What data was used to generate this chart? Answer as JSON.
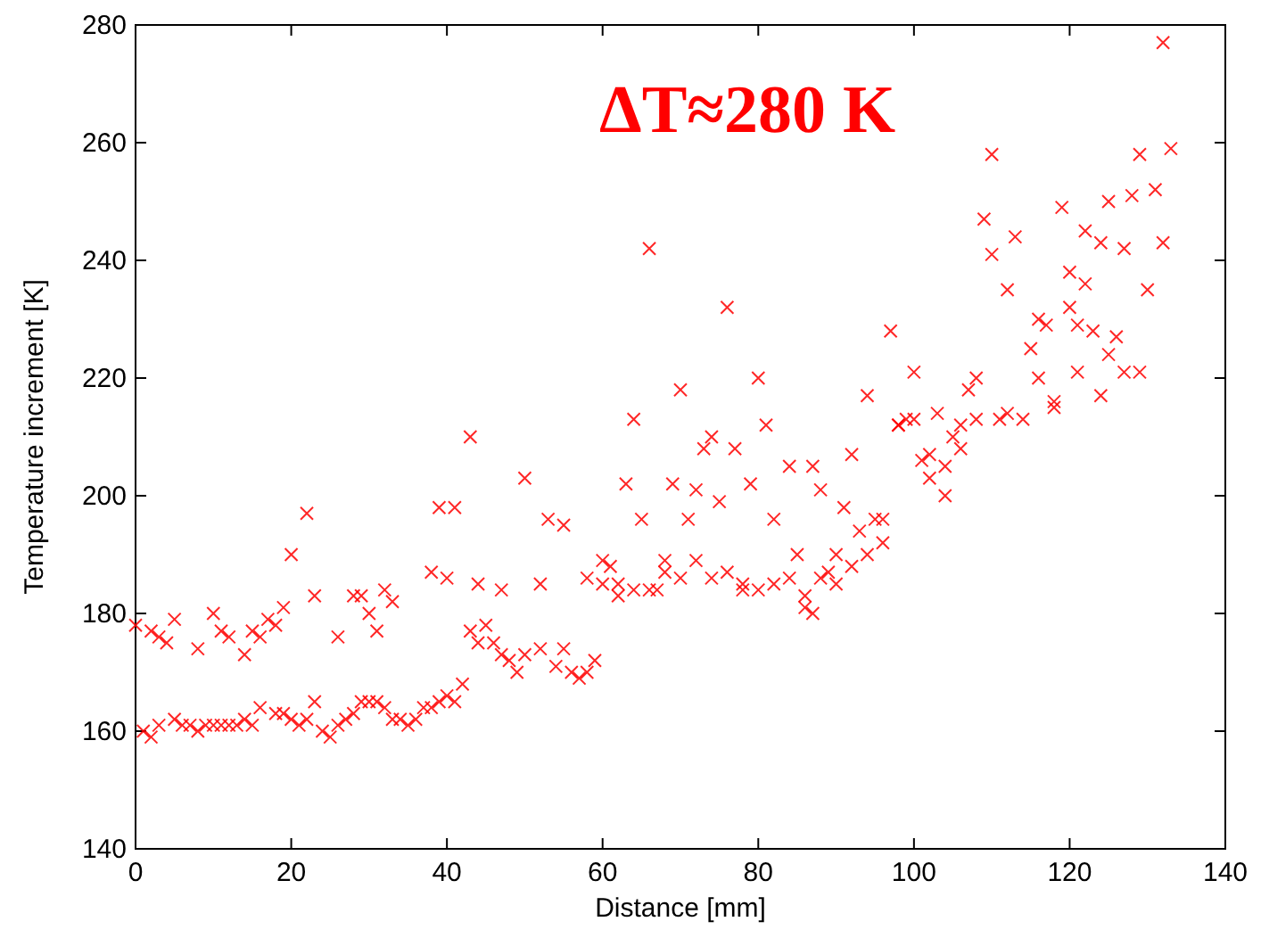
{
  "chart_data": {
    "type": "scatter",
    "xlabel": "Distance [mm]",
    "ylabel": "Temperature increment [K]",
    "annotations": [
      "ΔT≈280 K"
    ],
    "marker": "cross",
    "grid": false,
    "xlim": [
      0,
      140
    ],
    "xticks": [
      0,
      20,
      40,
      60,
      80,
      100,
      120,
      140
    ],
    "ylim": [
      140,
      280
    ],
    "yticks": [
      140,
      160,
      180,
      200,
      220,
      240,
      260,
      280
    ],
    "series": [
      {
        "color": "#ff0000",
        "x": [
          1,
          2,
          3,
          5,
          6,
          7,
          8,
          9,
          10,
          11,
          12,
          13,
          14,
          15,
          16,
          18,
          19,
          20,
          21,
          22,
          23,
          24,
          25,
          26,
          27,
          28,
          29,
          30,
          31,
          32,
          33,
          34,
          35,
          36,
          37,
          38,
          39,
          40,
          41,
          42,
          43,
          44,
          45,
          46,
          47,
          48,
          49,
          50,
          52,
          54,
          55,
          56,
          57,
          58,
          59,
          0,
          2,
          3,
          4,
          5,
          8,
          10,
          11,
          12,
          14,
          15,
          16,
          17,
          18,
          19,
          20,
          22,
          23,
          26,
          28,
          29,
          30,
          31,
          32,
          33,
          38,
          39,
          40,
          41,
          43,
          44,
          47,
          50,
          52,
          53,
          55,
          58,
          60,
          61,
          62,
          63,
          64,
          65,
          66,
          67,
          68,
          69,
          70,
          71,
          72,
          73,
          74,
          75,
          76,
          77,
          78,
          79,
          80,
          81,
          82,
          84,
          85,
          86,
          87,
          88,
          89,
          90,
          91,
          92,
          93,
          94,
          95,
          96,
          97,
          98,
          99,
          100,
          101,
          102,
          103,
          104,
          105,
          106,
          107,
          108,
          109,
          110,
          111,
          112,
          113,
          114,
          115,
          116,
          117,
          118,
          119,
          120,
          121,
          122,
          123,
          124,
          125,
          126,
          127,
          128,
          129,
          130,
          131,
          132,
          133,
          132,
          120,
          125,
          129,
          122,
          110,
          60,
          62,
          64,
          66,
          68,
          70,
          72,
          74,
          76,
          78,
          80,
          82,
          84,
          86,
          87,
          88,
          90,
          92,
          94,
          96,
          100,
          98,
          102,
          104,
          106,
          108,
          112,
          116,
          118,
          121,
          124,
          127
        ],
        "values": [
          160,
          159,
          161,
          162,
          161,
          161,
          160,
          161,
          161,
          161,
          161,
          161,
          162,
          161,
          164,
          163,
          163,
          162,
          161,
          162,
          165,
          160,
          159,
          161,
          162,
          163,
          165,
          165,
          165,
          164,
          162,
          162,
          161,
          162,
          164,
          164,
          165,
          166,
          165,
          168,
          177,
          175,
          178,
          175,
          173,
          172,
          170,
          173,
          174,
          171,
          174,
          170,
          169,
          170,
          172,
          178,
          177,
          176,
          175,
          179,
          174,
          180,
          177,
          176,
          173,
          177,
          176,
          179,
          178,
          181,
          190,
          197,
          183,
          176,
          183,
          183,
          180,
          177,
          184,
          182,
          187,
          198,
          186,
          198,
          210,
          185,
          184,
          203,
          185,
          196,
          195,
          186,
          185,
          188,
          183,
          202,
          213,
          196,
          242,
          184,
          189,
          202,
          218,
          196,
          201,
          208,
          210,
          199,
          232,
          208,
          185,
          202,
          220,
          212,
          196,
          205,
          190,
          181,
          205,
          201,
          187,
          190,
          198,
          207,
          194,
          217,
          196,
          196,
          228,
          212,
          213,
          221,
          206,
          203,
          214,
          200,
          210,
          212,
          218,
          220,
          247,
          241,
          213,
          235,
          244,
          213,
          225,
          230,
          229,
          215,
          249,
          232,
          229,
          236,
          228,
          243,
          250,
          227,
          242,
          251,
          258,
          235,
          252,
          243,
          259,
          277,
          238,
          224,
          221,
          245,
          258,
          189,
          185,
          184,
          184,
          187,
          186,
          189,
          186,
          187,
          184,
          184,
          185,
          186,
          183,
          180,
          186,
          185,
          188,
          190,
          192,
          213,
          212,
          207,
          205,
          208,
          213,
          214,
          220,
          216,
          221,
          217,
          221
        ]
      }
    ]
  }
}
